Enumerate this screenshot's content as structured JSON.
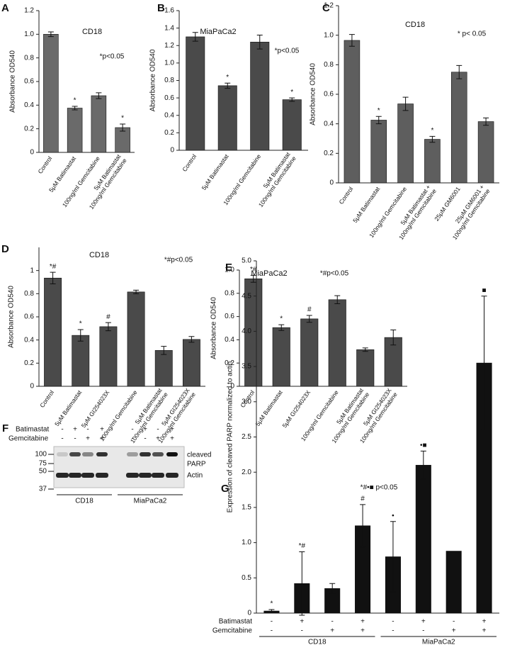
{
  "chart_data": [
    {
      "type": "bar",
      "panel": "A",
      "title": "CD18",
      "annotation": "*p<0.05",
      "y_label": "Absorbance OD540",
      "categories": [
        "Control",
        "5μM Batimastat",
        "100ng/ml Gemcitabine",
        [
          "5μM Batimastat",
          "100ng/ml Gemcitabine"
        ]
      ],
      "values": [
        1.0,
        0.375,
        0.48,
        0.21
      ],
      "errors": [
        0.02,
        0.015,
        0.025,
        0.03
      ],
      "markers": [
        null,
        "*",
        null,
        "*"
      ],
      "color": "#6a6a6a",
      "ylim": [
        0,
        1.2
      ],
      "yticks": [
        0,
        0.2,
        0.4,
        0.6,
        0.8,
        {
          "value": 1,
          "label": "1.0"
        },
        1.2
      ]
    },
    {
      "type": "bar",
      "panel": "B",
      "title": "MiaPaCa2",
      "annotation": "*p<0.05",
      "y_label": "Absorbance OD540",
      "categories": [
        "Control",
        "5μM Batimastat",
        "100ng/ml Gemcitabine",
        [
          "5μM Batimastat",
          "100ng/ml Gemcitabine"
        ]
      ],
      "values": [
        1.3,
        0.74,
        1.24,
        0.58
      ],
      "errors": [
        0.05,
        0.03,
        0.08,
        0.02
      ],
      "markers": [
        null,
        "*",
        null,
        "*"
      ],
      "color": "#4a4a4a",
      "ylim": [
        0,
        1.6
      ],
      "yticks": [
        0,
        0.2,
        0.4,
        0.6,
        0.8,
        {
          "value": 1,
          "label": "1.0"
        },
        1.2,
        1.4,
        1.6
      ]
    },
    {
      "type": "bar",
      "panel": "C",
      "title": "CD18",
      "annotation": "* p< 0.05",
      "y_label": "Absorbance OD540",
      "categories": [
        "Control",
        "5μM Batimastat",
        "100ng/ml Gemcitabine",
        [
          "5μM Batimastat +",
          "100ng/ml Gemcitabine"
        ],
        "25μM GM6001",
        [
          "25μM GM6001 +",
          "100ng/ml Gemcitabine"
        ]
      ],
      "values": [
        0.965,
        0.425,
        0.535,
        0.295,
        0.75,
        0.415
      ],
      "errors": [
        0.04,
        0.025,
        0.045,
        0.02,
        0.045,
        0.025
      ],
      "markers": [
        null,
        "*",
        null,
        "*",
        null,
        null
      ],
      "color": "#5e5e5e",
      "ylim": [
        0,
        1.2
      ],
      "yticks": [
        0,
        0.2,
        0.4,
        0.6,
        0.8,
        {
          "value": 1,
          "label": "1.0"
        },
        1.2
      ]
    },
    {
      "type": "bar",
      "panel": "D",
      "title": "CD18",
      "annotation": "*#p<0.05",
      "y_label": "Absorbance OD540",
      "categories": [
        "Control",
        "5μM Batimastat",
        "5μM GI254023X",
        "100ng/ml Gemcitabine",
        [
          "5μM Batimastat",
          "100ng/ml Gemcitabine"
        ],
        [
          "5μM GI254023X",
          "100ng/ml Gemcitabine"
        ]
      ],
      "values": [
        0.935,
        0.44,
        0.515,
        0.815,
        0.31,
        0.405
      ],
      "errors": [
        0.05,
        0.05,
        0.035,
        0.015,
        0.035,
        0.025
      ],
      "markers": [
        "*#",
        "*",
        "#",
        null,
        null,
        null
      ],
      "color": "#4a4a4a",
      "ylim": [
        0,
        1.2
      ],
      "yticks": [
        0,
        0.2,
        0.4,
        0.6,
        0.8,
        1
      ]
    },
    {
      "type": "bar",
      "panel": "E",
      "title": "MiaPaCa2",
      "annotation": "*#p<0.05",
      "y_label": "Absorbance OD540",
      "categories": [
        "Control",
        "5μM Batimastat",
        "5μM GI254023X",
        "100ng/ml Gemcitabine",
        [
          "5μM Batimastat",
          "100ng/ml Gemcitabine"
        ],
        [
          "5μM GI254023X",
          "100ng/ml Gemcitabine"
        ]
      ],
      "values": [
        0.925,
        0.505,
        0.58,
        0.745,
        0.315,
        0.42
      ],
      "errors": [
        0.03,
        0.025,
        0.03,
        0.035,
        0.015,
        0.065
      ],
      "markers": [
        "*#",
        "*",
        "#",
        null,
        null,
        null
      ],
      "color": "#4a4a4a",
      "ylim": [
        0,
        1.0
      ],
      "yticks": [
        0,
        0.2,
        0.4,
        0.6,
        0.8,
        {
          "value": 1,
          "label": "1.0"
        }
      ]
    },
    {
      "type": "bar",
      "panel": "G",
      "annotation": "*#•■ p<0.05",
      "y_label": "Expression of cleaved PARP normalized to actin",
      "rows": [
        {
          "label": "Batimastat",
          "signs": [
            "-",
            "+",
            "-",
            "+",
            "-",
            "+",
            "-",
            "+"
          ]
        },
        {
          "label": "Gemcitabine",
          "signs": [
            "-",
            "-",
            "+",
            "+",
            "-",
            "-",
            "+",
            "+"
          ]
        }
      ],
      "groups": [
        "CD18",
        "MiaPaCa2"
      ],
      "values": [
        0.03,
        0.42,
        0.35,
        1.24,
        0.8,
        2.1,
        0.88,
        3.55
      ],
      "errors": [
        0.02,
        0.45,
        0.07,
        0.3,
        0.5,
        0.2,
        null,
        0.95
      ],
      "markers": [
        "*",
        "*#",
        null,
        "#",
        "•",
        "•■",
        null,
        "■"
      ],
      "color": "#111111",
      "ylim": [
        0,
        5
      ],
      "yticks": [
        0,
        0.5,
        {
          "value": 1,
          "label": "1.0"
        },
        1.5,
        {
          "value": 2,
          "label": "2.0"
        },
        2.5,
        {
          "value": 3,
          "label": "3.0"
        },
        3.5,
        {
          "value": 4,
          "label": "4.0"
        },
        4.5,
        {
          "value": 5,
          "label": "5.0"
        }
      ]
    }
  ],
  "blot": {
    "panel": "F",
    "rows": [
      {
        "label": "Batimastat",
        "signs": [
          "-",
          "+",
          "-",
          "+",
          "-",
          "+",
          "-",
          "+"
        ]
      },
      {
        "label": "Gemcitabine",
        "signs": [
          "-",
          "-",
          "+",
          "+",
          "-",
          "-",
          "+",
          "+"
        ]
      }
    ],
    "size_markers": [
      "100",
      "75",
      "50",
      "37"
    ],
    "bands": [
      [
        "cleaved",
        "PARP"
      ],
      "Actin"
    ],
    "groups": [
      "CD18",
      "MiaPaCa2"
    ]
  }
}
